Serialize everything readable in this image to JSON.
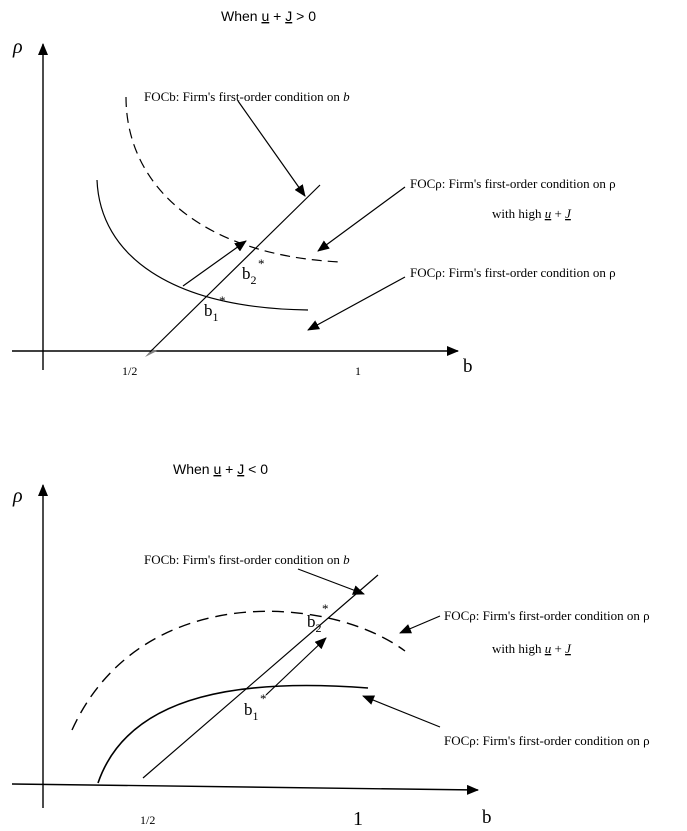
{
  "colors": {
    "ink": "#000000",
    "background": "#ffffff",
    "origin_marker": "#808080"
  },
  "top_panel": {
    "title_prefix": "When ",
    "title_u": "u",
    "title_mid": " + ",
    "title_j": "J",
    "title_suffix": " > 0",
    "y_axis_label": "ρ",
    "x_axis_label": "b",
    "tick_half": "1/2",
    "tick_one": "1",
    "point_b1": "b",
    "point_b1_sub": "1",
    "point_b2": "b",
    "point_b2_sub": "2",
    "star": "*",
    "foc_b_prefix": "FOCb: Firm's first-order condition on ",
    "foc_b_var": "b",
    "foc_rho_high": "FOCρ: Firm's first-order condition on ρ",
    "with_high_prefix": "with high ",
    "with_high_u": "u",
    "with_high_plus": " + ",
    "with_high_j": "J",
    "foc_rho": "FOCρ: Firm's first-order condition on ρ"
  },
  "bottom_panel": {
    "title_prefix": "When ",
    "title_u": "u",
    "title_mid": " + ",
    "title_j": "J",
    "title_suffix": " < 0",
    "y_axis_label": "ρ",
    "x_axis_label": "b",
    "tick_half": "1/2",
    "tick_one": "1",
    "point_b1": "b",
    "point_b1_sub": "1",
    "point_b2": "b",
    "point_b2_sub": "2",
    "star": "*",
    "foc_b_prefix": "FOCb: Firm's first-order condition on ",
    "foc_b_var": "b",
    "foc_rho_high": "FOCρ: Firm's first-order condition on ρ",
    "with_high_prefix": "with high ",
    "with_high_u": "u",
    "with_high_plus": " + ",
    "with_high_j": "J",
    "foc_rho": "FOCρ: Firm's first-order condition on ρ"
  }
}
